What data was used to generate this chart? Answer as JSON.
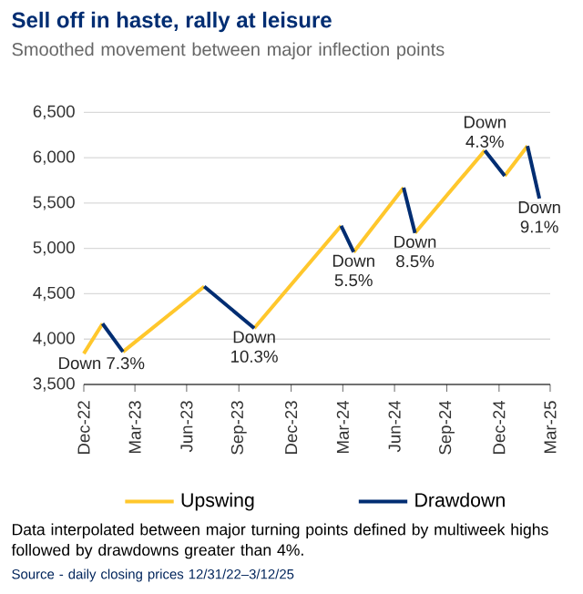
{
  "chart_data": {
    "type": "line",
    "title": "Sell off in haste, rally at leisure",
    "subtitle": "Smoothed movement between major inflection points",
    "xlim": [
      "2022-12-31",
      "2025-03-31"
    ],
    "xticks": [
      {
        "value": "2022-12-31",
        "label": "Dec-22"
      },
      {
        "value": "2023-03-31",
        "label": "Mar-23"
      },
      {
        "value": "2023-06-30",
        "label": "Jun-23"
      },
      {
        "value": "2023-09-30",
        "label": "Sep-23"
      },
      {
        "value": "2023-12-31",
        "label": "Dec-23"
      },
      {
        "value": "2024-03-31",
        "label": "Mar-24"
      },
      {
        "value": "2024-06-30",
        "label": "Jun-24"
      },
      {
        "value": "2024-09-30",
        "label": "Sep-24"
      },
      {
        "value": "2024-12-31",
        "label": "Dec-24"
      },
      {
        "value": "2025-03-31",
        "label": "Mar-25"
      }
    ],
    "ylim": [
      3500,
      6500
    ],
    "yticks": [
      {
        "value": 3500,
        "label": "3,500"
      },
      {
        "value": 4000,
        "label": "4,000"
      },
      {
        "value": 4500,
        "label": "4,500"
      },
      {
        "value": 5000,
        "label": "5,000"
      },
      {
        "value": 5500,
        "label": "5,500"
      },
      {
        "value": 6000,
        "label": "6,000"
      },
      {
        "value": 6500,
        "label": "6,500"
      }
    ],
    "grid": "y",
    "legend": "bottom",
    "marker": "none",
    "line_style": "solid",
    "series": [
      {
        "name": "Upswing",
        "color": "#ffc72c",
        "x": [
          "2022-12-31",
          "2023-02-02",
          null,
          "2023-03-10",
          "2023-07-31",
          null,
          "2023-10-27",
          "2024-03-28",
          null,
          "2024-04-19",
          "2024-07-16",
          null,
          "2024-08-05",
          "2024-12-06",
          null,
          "2025-01-10",
          "2025-02-19"
        ],
        "values": [
          3840,
          4170,
          null,
          3860,
          4580,
          null,
          4120,
          5250,
          null,
          4960,
          5670,
          null,
          5170,
          6080,
          null,
          5800,
          6130
        ]
      },
      {
        "name": "Drawdown",
        "color": "#002d72",
        "x": [
          "2023-02-02",
          "2023-03-10",
          null,
          "2023-07-31",
          "2023-10-27",
          null,
          "2024-03-28",
          "2024-04-19",
          null,
          "2024-07-16",
          "2024-08-05",
          null,
          "2024-12-06",
          "2025-01-10",
          null,
          "2025-02-19",
          "2025-03-12"
        ],
        "values": [
          4170,
          3860,
          null,
          4580,
          4120,
          null,
          5250,
          4960,
          null,
          5670,
          5170,
          null,
          6080,
          5800,
          null,
          6130,
          5550
        ]
      }
    ],
    "annotations": [
      {
        "text": "Down 7.3%",
        "x": "2023-03-10",
        "y": 3860
      },
      {
        "text": "Down 10.3%",
        "x": "2023-10-27",
        "y": 4120
      },
      {
        "text": "Down 5.5%",
        "x": "2024-04-19",
        "y": 4960
      },
      {
        "text": "Down 8.5%",
        "x": "2024-08-05",
        "y": 5170
      },
      {
        "text": "Down 4.3%",
        "x": "2024-12-06",
        "y": 6080
      },
      {
        "text": "Down 9.1%",
        "x": "2025-03-12",
        "y": 5550
      },
      "Data interpolated between major turning points defined by multiweek highs followed by drawdowns greater than 4%.",
      "Source - daily closing prices 12/31/22–3/12/25"
    ]
  }
}
